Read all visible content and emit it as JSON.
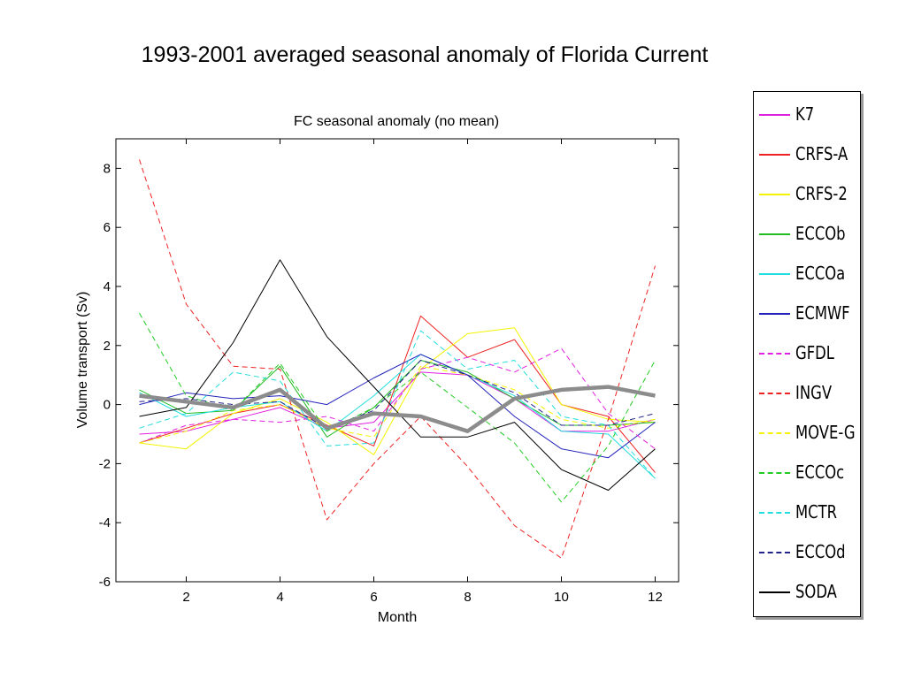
{
  "slide_title": "1993-2001 averaged seasonal anomaly of Florida Current",
  "colors": {
    "K7": "#e020e0",
    "CRFS-A": "#ee2222",
    "CRFS-2": "#f4f400",
    "ECCOb": "#22bb22",
    "ECCOa": "#22dddd",
    "ECMWF": "#2222bb",
    "GFDL": "#e020e0",
    "INGV": "#ee2222",
    "MOVE-G": "#f4f400",
    "ECCOc": "#22cc22",
    "MCTR": "#22dddd",
    "ECCOd": "#222288",
    "SODA": "#000000",
    "ensemble_mean": "#8c8c8c"
  },
  "chart_data": {
    "type": "line",
    "title": "FC seasonal anomaly (no   mean)",
    "xlabel": "Month",
    "ylabel": "Volume transport (Sv)",
    "xlim": [
      0.5,
      12.5
    ],
    "ylim": [
      -6,
      9
    ],
    "xticks": [
      "2",
      "4",
      "6",
      "8",
      "10",
      "12"
    ],
    "yticks": [
      "8",
      "6",
      "4",
      "2",
      "0",
      "-2",
      "-4",
      "-6"
    ],
    "xtick_values": [
      2,
      4,
      6,
      8,
      10,
      12
    ],
    "ytick_values": [
      8,
      6,
      4,
      2,
      0,
      -2,
      -4,
      -6
    ],
    "grid": false,
    "legend_position": "outside-right",
    "x": [
      1,
      2,
      3,
      4,
      5,
      6,
      7,
      8,
      9,
      10,
      11,
      12
    ],
    "series": [
      {
        "name": "K7",
        "style": "solid",
        "values": [
          -1.0,
          -0.9,
          -0.5,
          -0.1,
          -0.8,
          -0.6,
          1.1,
          1.0,
          0.2,
          -0.9,
          -0.9,
          -0.5
        ]
      },
      {
        "name": "CRFS-A",
        "style": "solid",
        "values": [
          -1.3,
          -0.8,
          -0.3,
          0.0,
          -0.7,
          -1.4,
          3.0,
          1.6,
          2.2,
          0.0,
          -0.4,
          -2.3
        ]
      },
      {
        "name": "CRFS-2",
        "style": "solid",
        "values": [
          -1.3,
          -1.5,
          -0.3,
          0.2,
          -0.6,
          -1.7,
          1.2,
          2.4,
          2.6,
          0.0,
          -0.5,
          -0.6
        ]
      },
      {
        "name": "ECCOb",
        "style": "solid",
        "values": [
          0.5,
          -0.3,
          -0.2,
          1.3,
          -1.1,
          -0.1,
          1.5,
          1.1,
          0.2,
          -0.7,
          -0.7,
          -0.6
        ]
      },
      {
        "name": "ECCOa",
        "style": "solid",
        "values": [
          0.4,
          -0.4,
          -0.1,
          0.1,
          -0.9,
          0.3,
          1.7,
          1.0,
          0.3,
          -0.9,
          -1.0,
          -2.5
        ]
      },
      {
        "name": "ECMWF",
        "style": "solid",
        "values": [
          0.0,
          0.4,
          0.2,
          0.3,
          0.0,
          0.9,
          1.7,
          1.0,
          -0.4,
          -1.5,
          -1.8,
          -0.6
        ]
      },
      {
        "name": "GFDL",
        "style": "dashed",
        "values": [
          -1.3,
          -0.7,
          -0.5,
          -0.6,
          -0.4,
          -0.9,
          1.2,
          1.6,
          1.1,
          1.9,
          -0.3,
          -1.5
        ]
      },
      {
        "name": "INGV",
        "style": "dashed",
        "values": [
          8.3,
          3.4,
          1.3,
          1.2,
          -3.9,
          -2.0,
          -0.4,
          -2.1,
          -4.1,
          -5.2,
          -0.5,
          4.7
        ]
      },
      {
        "name": "MOVE-G",
        "style": "dashed",
        "values": [
          -1.3,
          -0.9,
          -0.2,
          0.0,
          -0.8,
          -1.1,
          1.3,
          1.0,
          0.5,
          -0.5,
          -0.8,
          -0.5
        ]
      },
      {
        "name": "ECCOc",
        "style": "dashed",
        "values": [
          3.1,
          0.3,
          -0.2,
          1.4,
          -0.9,
          -0.1,
          1.1,
          -0.1,
          -1.3,
          -3.3,
          -1.4,
          1.5
        ]
      },
      {
        "name": "MCTR",
        "style": "dashed",
        "values": [
          -0.8,
          -0.3,
          1.1,
          0.8,
          -1.4,
          -1.3,
          2.5,
          1.2,
          1.5,
          -0.4,
          -0.7,
          -2.5
        ]
      },
      {
        "name": "ECCOd",
        "style": "dashed",
        "values": [
          0.1,
          0.2,
          0.0,
          0.1,
          -0.8,
          -0.2,
          1.5,
          1.0,
          0.4,
          -0.7,
          -0.7,
          -0.3
        ]
      },
      {
        "name": "SODA",
        "style": "solid",
        "values": [
          -0.4,
          -0.1,
          2.1,
          4.9,
          2.3,
          0.6,
          -1.1,
          -1.1,
          -0.6,
          -2.2,
          -2.9,
          -1.5
        ]
      },
      {
        "name": "",
        "style": "thick",
        "values": [
          0.3,
          0.1,
          -0.1,
          0.5,
          -0.8,
          -0.3,
          -0.4,
          -0.9,
          0.2,
          0.5,
          0.6,
          0.3
        ]
      }
    ]
  }
}
